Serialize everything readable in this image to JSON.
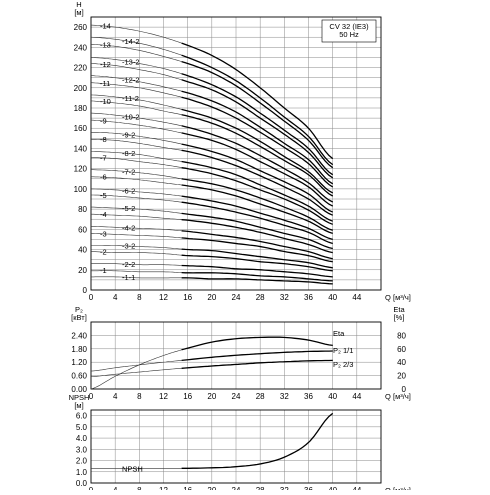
{
  "chart_data": [
    {
      "type": "line",
      "panel": "head",
      "ylabel": "H",
      "yunit": "[м]",
      "xlabel": "Q",
      "xunit": "[м³/ч]",
      "xlim": [
        0,
        48
      ],
      "ylim": [
        0,
        270
      ],
      "x_ticks": [
        0,
        4,
        8,
        12,
        16,
        20,
        24,
        28,
        32,
        36,
        40,
        44
      ],
      "y_ticks": [
        0,
        20,
        40,
        60,
        80,
        100,
        120,
        140,
        160,
        180,
        200,
        220,
        240,
        260
      ],
      "annotation": [
        "CV 32 (IE3)",
        "50 Hz"
      ],
      "curve_x": [
        0,
        4,
        8,
        12,
        16,
        20,
        24,
        28,
        32,
        36,
        40
      ],
      "operating_range": [
        15,
        40
      ],
      "series": [
        {
          "name": "-14",
          "values": [
            262,
            260,
            256,
            250,
            242,
            232,
            218,
            200,
            180,
            160,
            130
          ]
        },
        {
          "name": "-14-2",
          "values": [
            250,
            248,
            244,
            238,
            230,
            220,
            207,
            190,
            171,
            152,
            124
          ]
        },
        {
          "name": "-13",
          "values": [
            243,
            241,
            237,
            231,
            224,
            215,
            202,
            185,
            167,
            148,
            121
          ]
        },
        {
          "name": "-13-2",
          "values": [
            230,
            228,
            224,
            219,
            212,
            203,
            191,
            175,
            158,
            140,
            114
          ]
        },
        {
          "name": "-12",
          "values": [
            224,
            222,
            218,
            213,
            206,
            198,
            186,
            170,
            154,
            136,
            111
          ]
        },
        {
          "name": "-12-2",
          "values": [
            212,
            210,
            206,
            201,
            195,
            187,
            176,
            161,
            145,
            129,
            105
          ]
        },
        {
          "name": "-11",
          "values": [
            205,
            203,
            200,
            195,
            189,
            181,
            170,
            156,
            141,
            125,
            102
          ]
        },
        {
          "name": "-11-2",
          "values": [
            193,
            191,
            188,
            183,
            177,
            170,
            160,
            147,
            132,
            117,
            96
          ]
        },
        {
          "name": "-10",
          "values": [
            187,
            185,
            182,
            177,
            172,
            165,
            155,
            142,
            128,
            114,
            93
          ]
        },
        {
          "name": "-10-2",
          "values": [
            175,
            173,
            170,
            166,
            161,
            154,
            145,
            133,
            120,
            106,
            87
          ]
        },
        {
          "name": "-9",
          "values": [
            168,
            166,
            163,
            159,
            154,
            148,
            139,
            127,
            115,
            102,
            83
          ]
        },
        {
          "name": "-9-2",
          "values": [
            156,
            155,
            152,
            148,
            143,
            137,
            129,
            118,
            107,
            95,
            77
          ]
        },
        {
          "name": "-8",
          "values": [
            149,
            148,
            145,
            141,
            137,
            131,
            123,
            113,
            102,
            90,
            74
          ]
        },
        {
          "name": "-8-2",
          "values": [
            137,
            136,
            134,
            130,
            126,
            121,
            114,
            104,
            94,
            83,
            68
          ]
        },
        {
          "name": "-7",
          "values": [
            131,
            130,
            127,
            124,
            120,
            115,
            108,
            99,
            90,
            79,
            65
          ]
        },
        {
          "name": "-7-2",
          "values": [
            119,
            118,
            116,
            113,
            109,
            105,
            99,
            91,
            82,
            72,
            59
          ]
        },
        {
          "name": "-6",
          "values": [
            112,
            111,
            109,
            106,
            103,
            99,
            93,
            85,
            77,
            68,
            56
          ]
        },
        {
          "name": "-6-2",
          "values": [
            100,
            99,
            97,
            95,
            92,
            88,
            83,
            76,
            69,
            61,
            50
          ]
        },
        {
          "name": "-5",
          "values": [
            94,
            93,
            91,
            89,
            86,
            82,
            77,
            71,
            64,
            57,
            46
          ]
        },
        {
          "name": "-5-2",
          "values": [
            82,
            81,
            80,
            78,
            75,
            72,
            68,
            62,
            56,
            50,
            41
          ]
        },
        {
          "name": "-4",
          "values": [
            75,
            74,
            73,
            71,
            69,
            66,
            62,
            57,
            51,
            45,
            37
          ]
        },
        {
          "name": "-4-2",
          "values": [
            63,
            62,
            61,
            60,
            58,
            55,
            52,
            48,
            43,
            38,
            31
          ]
        },
        {
          "name": "-3",
          "values": [
            56,
            55,
            54,
            53,
            51,
            49,
            46,
            43,
            38,
            34,
            28
          ]
        },
        {
          "name": "-3-2",
          "values": [
            44,
            44,
            43,
            42,
            40,
            39,
            36,
            33,
            30,
            27,
            22
          ]
        },
        {
          "name": "-2",
          "values": [
            38,
            37,
            37,
            36,
            34,
            33,
            31,
            28,
            26,
            23,
            19
          ]
        },
        {
          "name": "-2-2",
          "values": [
            26,
            26,
            25,
            25,
            24,
            23,
            21,
            20,
            18,
            16,
            13
          ]
        },
        {
          "name": "-1",
          "values": [
            19,
            19,
            18,
            18,
            17,
            17,
            16,
            14,
            13,
            11,
            9
          ]
        },
        {
          "name": "-1-1",
          "values": [
            13,
            13,
            12,
            12,
            12,
            11,
            11,
            10,
            9,
            8,
            6
          ]
        }
      ]
    },
    {
      "type": "line",
      "panel": "power-efficiency",
      "ylabel": "P₂",
      "yunit": "[кВт]",
      "ylabel_right": "Eta",
      "yunit_right": "[%]",
      "xlabel": "Q",
      "xunit": "[м³/ч]",
      "xlim": [
        0,
        48
      ],
      "ylim": [
        0,
        3.0
      ],
      "ylim_right": [
        0,
        100
      ],
      "x_ticks": [
        0,
        4,
        8,
        12,
        16,
        20,
        24,
        28,
        32,
        36,
        40,
        44
      ],
      "y_ticks": [
        0.0,
        0.6,
        1.2,
        1.8,
        2.4
      ],
      "y_tick_labels": [
        "0.00",
        "0.60",
        "1.20",
        "1.80",
        "2.40"
      ],
      "y_ticks_right": [
        0,
        20,
        40,
        60,
        80
      ],
      "curve_x": [
        0,
        4,
        8,
        12,
        16,
        20,
        24,
        28,
        32,
        36,
        40
      ],
      "operating_range": [
        15,
        40
      ],
      "series": [
        {
          "name": "Eta",
          "axis": "right",
          "values": [
            0,
            19,
            36,
            50,
            61,
            70,
            75,
            77,
            77,
            73,
            65
          ]
        },
        {
          "name": "P₂ 1/1",
          "axis": "left",
          "values": [
            0.8,
            0.95,
            1.08,
            1.2,
            1.31,
            1.42,
            1.51,
            1.58,
            1.64,
            1.68,
            1.7
          ]
        },
        {
          "name": "P₂ 2/3",
          "axis": "left",
          "values": [
            0.55,
            0.66,
            0.76,
            0.86,
            0.95,
            1.03,
            1.1,
            1.17,
            1.22,
            1.26,
            1.28
          ]
        }
      ]
    },
    {
      "type": "line",
      "panel": "npsh",
      "ylabel": "NPSH",
      "yunit": "[м]",
      "xlabel": "Q",
      "xunit": "[м³/ч]",
      "xlim": [
        0,
        48
      ],
      "ylim": [
        0,
        6.5
      ],
      "x_ticks": [
        0,
        4,
        8,
        12,
        16,
        20,
        24,
        28,
        32,
        36,
        40,
        44
      ],
      "y_ticks": [
        0.0,
        1.0,
        2.0,
        3.0,
        4.0,
        5.0,
        6.0
      ],
      "y_tick_labels": [
        "0.0",
        "1.0",
        "2.0",
        "3.0",
        "4.0",
        "5.0",
        "6.0"
      ],
      "curve_x": [
        0,
        4,
        8,
        12,
        16,
        20,
        24,
        28,
        32,
        36,
        40
      ],
      "operating_range": [
        15,
        40
      ],
      "series": [
        {
          "name": "NPSH",
          "values": [
            1.3,
            1.3,
            1.3,
            1.3,
            1.31,
            1.35,
            1.45,
            1.7,
            2.3,
            3.6,
            6.2
          ]
        }
      ]
    }
  ]
}
